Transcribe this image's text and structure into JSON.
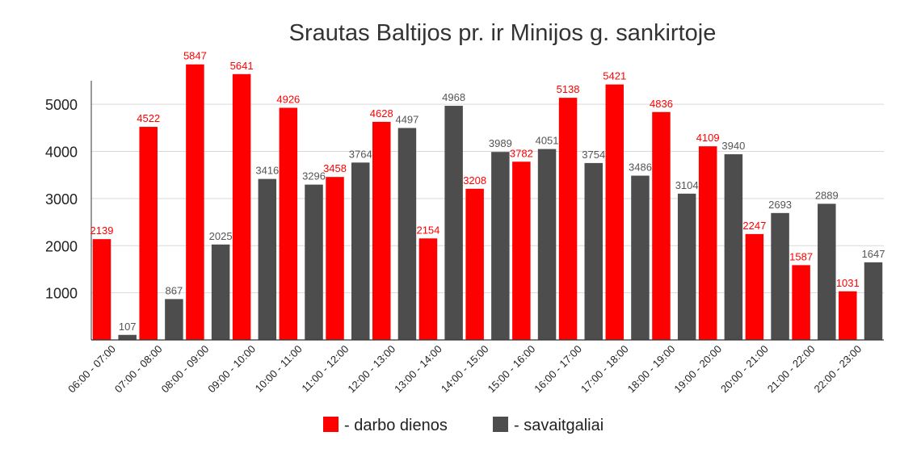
{
  "chart_data": {
    "type": "bar",
    "title": "Srautas Baltijos pr. ir Minijos g. sankirtoje",
    "xlabel": "",
    "ylabel": "",
    "ylim": [
      0,
      5500
    ],
    "yticks": [
      1000,
      2000,
      3000,
      4000,
      5000
    ],
    "grid": true,
    "legend_position": "bottom",
    "categories": [
      "06:00 - 07:00",
      "07:00 - 08:00",
      "08:00 - 09:00",
      "09:00 - 10:00",
      "10:00 - 11:00",
      "11:00 - 12:00",
      "12:00 - 13:00",
      "13:00 - 14:00",
      "14:00 - 15:00",
      "15:00 - 16:00",
      "16:00 - 17:00",
      "17:00 - 18:00",
      "18:00 - 19:00",
      "19:00 - 20:00",
      "20:00 - 21:00",
      "21:00 - 22:00",
      "22:00 - 23:00"
    ],
    "series": [
      {
        "name": "- darbo dienos",
        "color": "#ff0000",
        "label_color": "#ff0000",
        "values": [
          2139,
          4522,
          5847,
          5641,
          4926,
          3458,
          4628,
          2154,
          3208,
          3782,
          5138,
          5421,
          4836,
          4109,
          2247,
          1587,
          1031
        ]
      },
      {
        "name": "- savaitgaliai",
        "color": "#4d4d4d",
        "label_color": "#555555",
        "values": [
          107,
          867,
          2025,
          3416,
          3296,
          3764,
          4497,
          4968,
          3989,
          4051,
          3754,
          3486,
          3104,
          3940,
          2693,
          2889,
          1647
        ]
      }
    ]
  }
}
